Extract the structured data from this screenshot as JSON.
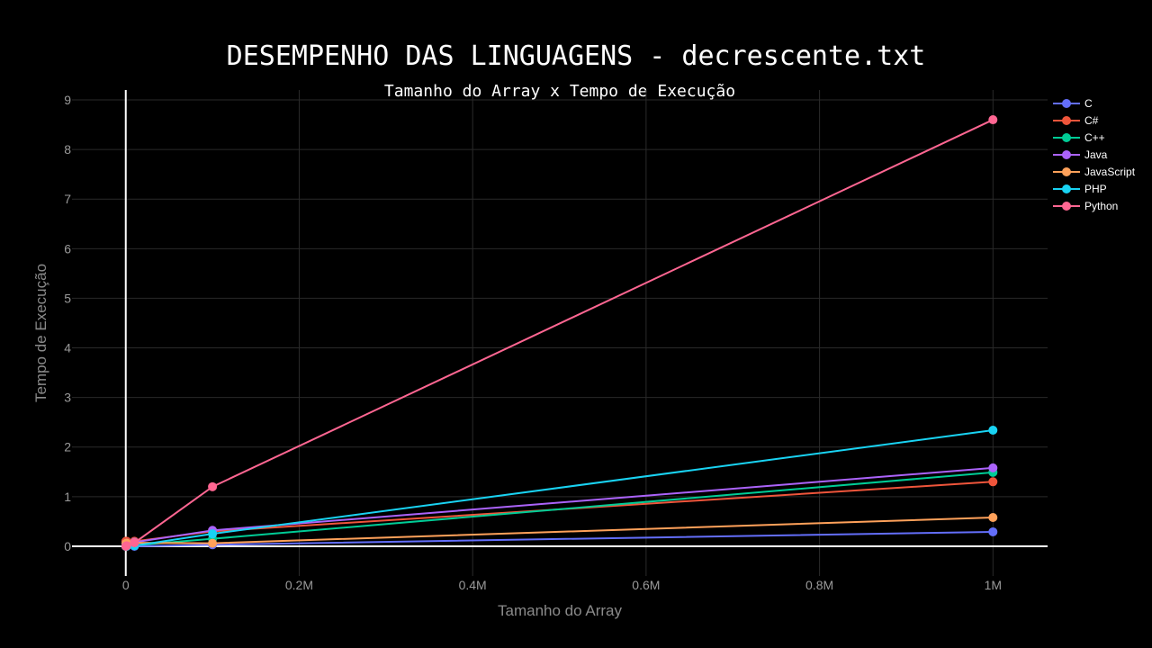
{
  "chart_data": {
    "type": "line",
    "title": "DESEMPENHO DAS LINGUAGENS - decrescente.txt",
    "subtitle": "Tamanho do Array x Tempo de Execução",
    "xlabel": "Tamanho do Array",
    "ylabel": "Tempo de Execução",
    "xlim": [
      -62000,
      1063000
    ],
    "ylim": [
      -0.6,
      9.2
    ],
    "x_ticks": [
      0,
      200000,
      400000,
      600000,
      800000,
      1000000
    ],
    "x_tick_labels": [
      "0",
      "0.2M",
      "0.4M",
      "0.6M",
      "0.8M",
      "1M"
    ],
    "y_ticks": [
      0,
      1,
      2,
      3,
      4,
      5,
      6,
      7,
      8,
      9
    ],
    "y_tick_labels": [
      "0",
      "1",
      "2",
      "3",
      "4",
      "5",
      "6",
      "7",
      "8",
      "9"
    ],
    "grid": true,
    "legend_position": "top-right",
    "x": [
      100,
      1000,
      10000,
      100000,
      1000000
    ],
    "series": [
      {
        "name": "C",
        "color": "#636efa",
        "values": [
          0.0,
          0.0,
          0.0,
          0.03,
          0.29
        ]
      },
      {
        "name": "C#",
        "color": "#ef553b",
        "values": [
          0.1,
          0.1,
          0.1,
          0.3,
          1.3
        ]
      },
      {
        "name": "C++",
        "color": "#00cc96",
        "values": [
          0.0,
          0.0,
          0.02,
          0.15,
          1.49
        ]
      },
      {
        "name": "Java",
        "color": "#ab63fa",
        "values": [
          0.05,
          0.06,
          0.08,
          0.32,
          1.58
        ]
      },
      {
        "name": "JavaScript",
        "color": "#ffa15a",
        "values": [
          0.05,
          0.06,
          0.07,
          0.06,
          0.58
        ]
      },
      {
        "name": "PHP",
        "color": "#19d3f3",
        "values": [
          0.0,
          0.0,
          0.01,
          0.25,
          2.34
        ]
      },
      {
        "name": "Python",
        "color": "#ff6692",
        "values": [
          0.0,
          0.01,
          0.07,
          1.2,
          8.6
        ]
      }
    ]
  }
}
